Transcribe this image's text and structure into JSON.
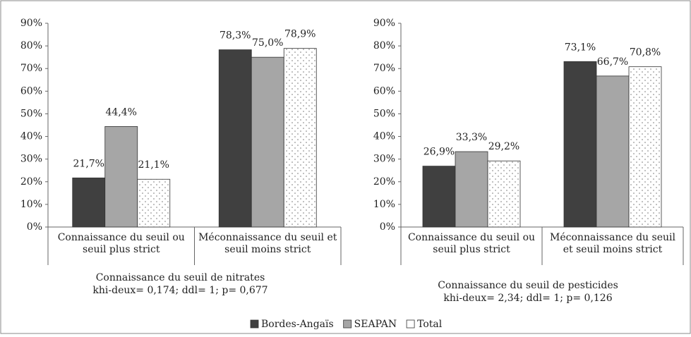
{
  "chart_data": [
    {
      "type": "bar",
      "categories": [
        "Connaissance du seuil ou seuil plus strict",
        "Méconnaissance du seuil et seuil moins strict"
      ],
      "series": [
        {
          "name": "Bordes-Angaïs",
          "color": "#404040",
          "values": [
            21.7,
            78.3
          ],
          "value_labels": [
            "21,7%",
            "78,3%"
          ]
        },
        {
          "name": "SEAPAN",
          "color": "#a6a6a6",
          "values": [
            44.4,
            75.0
          ],
          "value_labels": [
            "44,4%",
            "75,0%"
          ]
        },
        {
          "name": "Total",
          "color": "#ffffff",
          "pattern": "dots",
          "values": [
            21.1,
            78.9
          ],
          "value_labels": [
            "21,1%",
            "78,9%"
          ]
        }
      ],
      "ylim": [
        0,
        90
      ],
      "yticks": [
        {
          "value": 0,
          "label": "0%"
        },
        {
          "value": 10,
          "label": "10%"
        },
        {
          "value": 20,
          "label": "20%"
        },
        {
          "value": 30,
          "label": "30%"
        },
        {
          "value": 40,
          "label": "40%"
        },
        {
          "value": 50,
          "label": "50%"
        },
        {
          "value": 60,
          "label": "60%"
        },
        {
          "value": 70,
          "label": "70%"
        },
        {
          "value": 80,
          "label": "80%"
        },
        {
          "value": 90,
          "label": "90%"
        }
      ],
      "xlabel": "Connaissance du seuil de nitrates",
      "note": "khi-deux= 0,174; ddl= 1; p= 0,677"
    },
    {
      "type": "bar",
      "categories": [
        "Connaissance du seuil ou seuil plus strict",
        "Méconnaissance du seuil et seuil moins strict"
      ],
      "series": [
        {
          "color": "#404040",
          "values": [
            26.9,
            73.1
          ],
          "value_labels": [
            "26,9%",
            "73,1%"
          ]
        },
        {
          "color": "#a6a6a6",
          "values": [
            33.3,
            66.7
          ],
          "value_labels": [
            "33,3%",
            "66,7%"
          ]
        },
        {
          "color": "#ffffff",
          "pattern": "dots",
          "values": [
            29.2,
            70.8
          ],
          "value_labels": [
            "29,2%",
            "70,8%"
          ]
        }
      ],
      "ylim": [
        0,
        90
      ],
      "yticks": [
        {
          "value": 0,
          "label": "0%"
        },
        {
          "value": 10,
          "label": "10%"
        },
        {
          "value": 20,
          "label": "20%"
        },
        {
          "value": 30,
          "label": "30%"
        },
        {
          "value": 40,
          "label": "40%"
        },
        {
          "value": 50,
          "label": "50%"
        },
        {
          "value": 60,
          "label": "60%"
        },
        {
          "value": 70,
          "label": "70%"
        },
        {
          "value": 80,
          "label": "80%"
        },
        {
          "value": 90,
          "label": "90%"
        }
      ],
      "xlabel": "Connaissance du seuil de pesticides",
      "note": "khi-deux= 2,34; ddl= 1; p= 0,126"
    }
  ]
}
